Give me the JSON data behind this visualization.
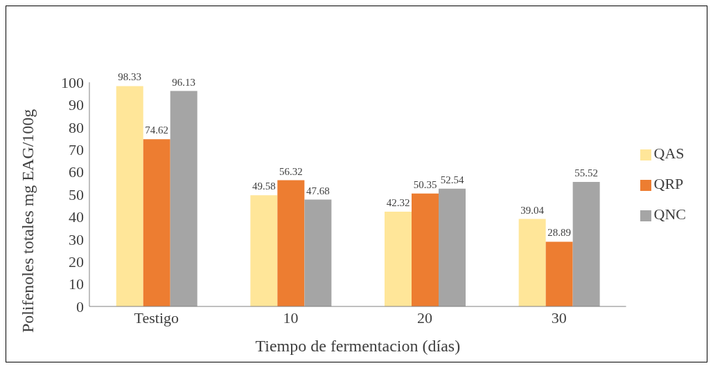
{
  "chart_data": {
    "type": "bar",
    "xlabel": "Tiempo de fermentacion (días)",
    "ylabel": "Polifenoles totales  mg EAG/100g",
    "categories": [
      "Testigo",
      "10",
      "20",
      "30"
    ],
    "series": [
      {
        "name": "QAS",
        "color": "#ffe699",
        "values": [
          98.33,
          49.58,
          42.32,
          39.04
        ]
      },
      {
        "name": "QRP",
        "color": "#ed7d31",
        "values": [
          74.62,
          56.32,
          50.35,
          28.89
        ]
      },
      {
        "name": "QNC",
        "color": "#a5a5a5",
        "values": [
          96.13,
          47.68,
          52.54,
          55.52
        ]
      }
    ],
    "ylim": [
      0,
      100
    ],
    "yticks": [
      0,
      10,
      20,
      30,
      40,
      50,
      60,
      70,
      80,
      90,
      100
    ],
    "grid": false,
    "legend": "right",
    "data_labels": true
  }
}
